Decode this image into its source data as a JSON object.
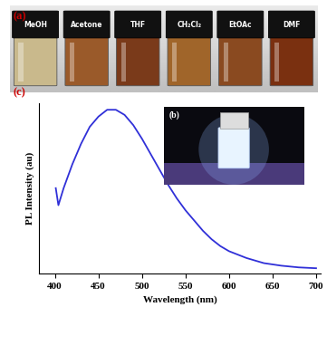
{
  "figure": {
    "panel_a": {
      "label": "(a)",
      "solvents": [
        "MeOH",
        "Acetone",
        "THF",
        "CH₂Cl₂",
        "EtOAc",
        "DMF"
      ]
    },
    "panel_b": {
      "label": "(b)"
    },
    "panel_c": {
      "label": "(c)"
    }
  },
  "chart_data": {
    "type": "line",
    "x_label": "Wavelength (nm)",
    "y_label": "PL Intensity (au)",
    "x": [
      401,
      404,
      410,
      420,
      430,
      440,
      450,
      460,
      470,
      480,
      490,
      500,
      510,
      520,
      530,
      540,
      550,
      560,
      570,
      580,
      590,
      600,
      620,
      640,
      660,
      680,
      700
    ],
    "values": [
      0.5,
      0.4,
      0.5,
      0.64,
      0.76,
      0.86,
      0.92,
      0.96,
      0.96,
      0.93,
      0.87,
      0.79,
      0.7,
      0.61,
      0.52,
      0.44,
      0.37,
      0.31,
      0.25,
      0.2,
      0.16,
      0.13,
      0.09,
      0.06,
      0.045,
      0.035,
      0.03
    ],
    "color": "#3030d8",
    "xlim": [
      382,
      705
    ],
    "ylim": [
      0,
      1
    ],
    "xticks": [
      400,
      450,
      500,
      550,
      600,
      650,
      700
    ],
    "tick_labels": "x"
  }
}
